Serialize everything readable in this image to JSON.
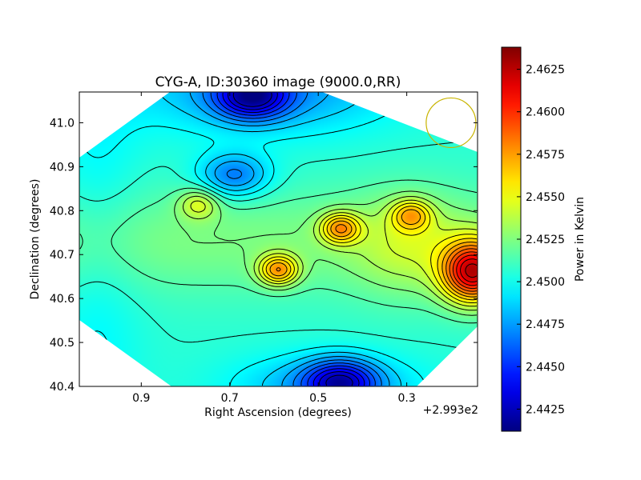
{
  "chart_data": {
    "type": "heatmap",
    "title": "CYG-A, ID:30360 image (9000.0,RR)",
    "xlabel": "Right Ascension (degrees)",
    "ylabel": "Declination (degrees)",
    "x_offset_label": "+2.993e2",
    "x_ticks": [
      "0.9",
      "0.7",
      "0.5",
      "0.3"
    ],
    "y_ticks": [
      "40.4",
      "40.5",
      "40.6",
      "40.7",
      "40.8",
      "40.9",
      "41.0"
    ],
    "xlim": [
      1.04,
      0.14
    ],
    "ylim": [
      40.4,
      41.07
    ],
    "colorbar": {
      "label": "Power in Kelvin",
      "range": [
        2.4412,
        2.4638
      ],
      "ticks": [
        "2.4425",
        "2.4450",
        "2.4475",
        "2.4500",
        "2.4525",
        "2.4550",
        "2.4575",
        "2.4600",
        "2.4625"
      ],
      "colormap": "jet"
    },
    "beam_circle": {
      "ra": 0.2,
      "dec": 41.0,
      "color": "#c8b400"
    },
    "features": [
      {
        "kind": "peak",
        "ra": 0.15,
        "dec": 40.66,
        "value": 2.4638
      },
      {
        "kind": "peak",
        "ra": 0.45,
        "dec": 40.76,
        "value": 2.4575
      },
      {
        "kind": "peak",
        "ra": 0.59,
        "dec": 40.665,
        "value": 2.458
      },
      {
        "kind": "peak",
        "ra": 0.77,
        "dec": 40.815,
        "value": 2.4545
      },
      {
        "kind": "peak",
        "ra": 0.29,
        "dec": 40.79,
        "value": 2.456
      },
      {
        "kind": "trough",
        "ra": 0.65,
        "dec": 41.06,
        "value": 2.4425
      },
      {
        "kind": "trough",
        "ra": 0.45,
        "dec": 40.41,
        "value": 2.443
      },
      {
        "kind": "trough",
        "ra": 0.69,
        "dec": 40.88,
        "value": 2.4455
      }
    ]
  }
}
